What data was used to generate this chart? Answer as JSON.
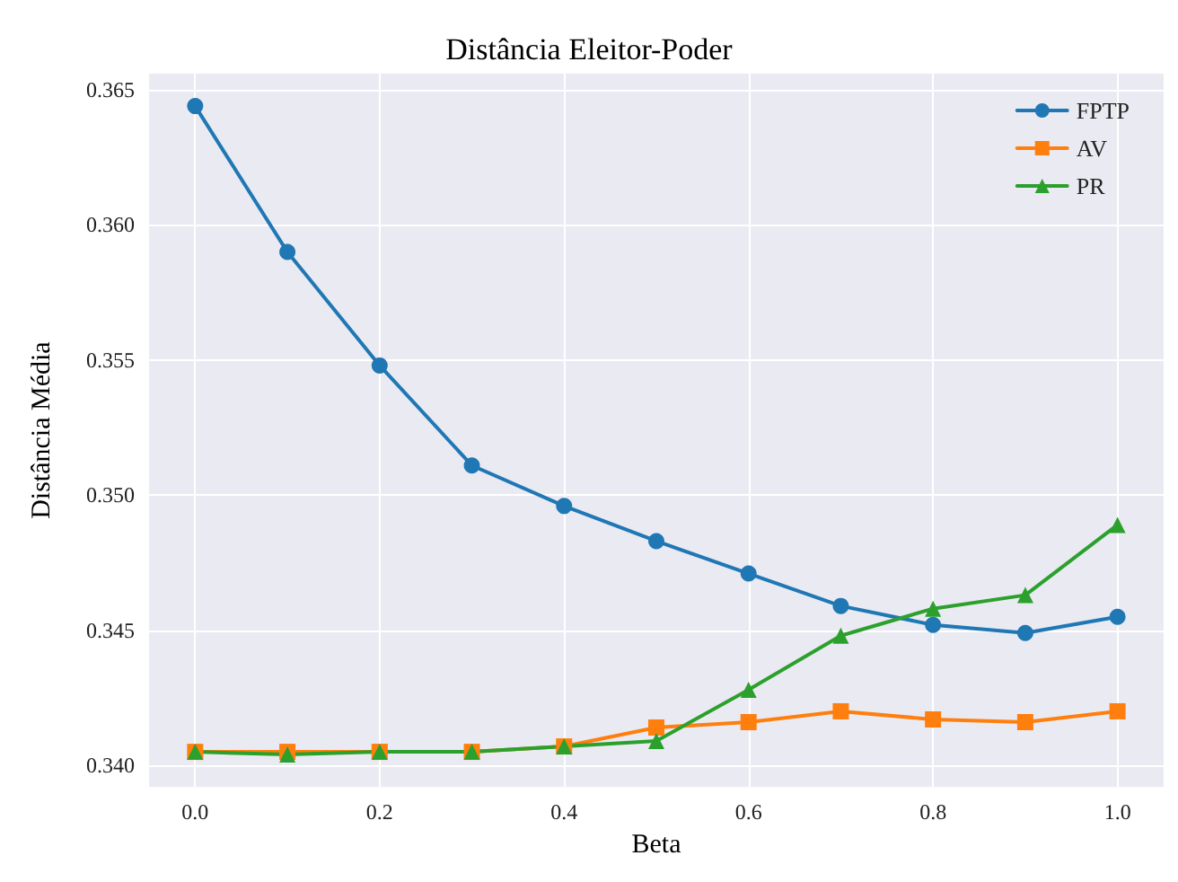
{
  "chart_data": {
    "type": "line",
    "title": "Distância Eleitor-Poder",
    "xlabel": "Beta",
    "ylabel": "Distância Média",
    "x": [
      0,
      0.1,
      0.2,
      0.3,
      0.4,
      0.5,
      0.6,
      0.7,
      0.8,
      0.9,
      1.0
    ],
    "series": [
      {
        "name": "FPTP",
        "color": "#1f77b4",
        "marker": "circle",
        "values": [
          0.3644,
          0.359,
          0.3548,
          0.3511,
          0.3496,
          0.3483,
          0.3471,
          0.3459,
          0.3452,
          0.3449,
          0.3455
        ]
      },
      {
        "name": "AV",
        "color": "#ff7f0e",
        "marker": "square",
        "values": [
          0.3405,
          0.3405,
          0.3405,
          0.3405,
          0.3407,
          0.3414,
          0.3416,
          0.342,
          0.3417,
          0.3416,
          0.342
        ]
      },
      {
        "name": "PR",
        "color": "#2ca02c",
        "marker": "triangle",
        "values": [
          0.3405,
          0.3404,
          0.3405,
          0.3405,
          0.3407,
          0.3409,
          0.3428,
          0.3448,
          0.3458,
          0.3463,
          0.3489
        ]
      }
    ],
    "xlim": [
      -0.05,
      1.05
    ],
    "xticks": [
      {
        "value": 0,
        "label": "0.0"
      },
      {
        "value": 0.2,
        "label": "0.2"
      },
      {
        "value": 0.4,
        "label": "0.4"
      },
      {
        "value": 0.6,
        "label": "0.6"
      },
      {
        "value": 0.8,
        "label": "0.8"
      },
      {
        "value": 1,
        "label": "1.0"
      }
    ],
    "ylim": [
      0.3392,
      0.3656
    ],
    "yticks": [
      {
        "value": 0.34,
        "label": "0.340"
      },
      {
        "value": 0.345,
        "label": "0.345"
      },
      {
        "value": 0.35,
        "label": "0.350"
      },
      {
        "value": 0.355,
        "label": "0.355"
      },
      {
        "value": 0.36,
        "label": "0.360"
      },
      {
        "value": 0.365,
        "label": "0.365"
      }
    ],
    "grid": true,
    "legend": "top right",
    "line_style": "solid"
  }
}
